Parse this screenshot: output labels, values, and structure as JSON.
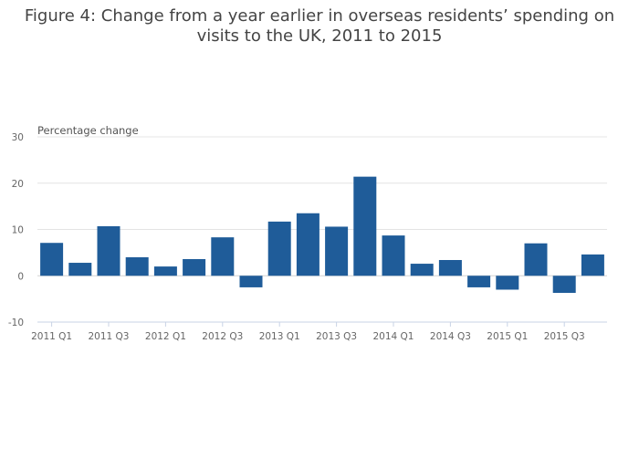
{
  "chart_data": {
    "type": "bar",
    "title_lines": [
      "Figure 4: Change from a year earlier in overseas residents’ spending on",
      "visits to the UK, 2011 to 2015"
    ],
    "ylabel": "Percentage change",
    "xlabel": "",
    "ylim": [
      -10,
      30
    ],
    "yticks": [
      -10,
      0,
      10,
      20,
      30
    ],
    "grid": true,
    "bar_color": "#1f5c99",
    "categories": [
      "2011 Q1",
      "2011 Q2",
      "2011 Q3",
      "2011 Q4",
      "2012 Q1",
      "2012 Q2",
      "2012 Q3",
      "2012 Q4",
      "2013 Q1",
      "2013 Q2",
      "2013 Q3",
      "2013 Q4",
      "2014 Q1",
      "2014 Q2",
      "2014 Q3",
      "2014 Q4",
      "2015 Q1",
      "2015 Q2",
      "2015 Q3",
      "2015 Q4"
    ],
    "tick_labels": [
      "2011 Q1",
      "2011 Q3",
      "2012 Q1",
      "2012 Q3",
      "2013 Q1",
      "2013 Q3",
      "2014 Q1",
      "2014 Q3",
      "2015 Q1",
      "2015 Q3"
    ],
    "values": [
      7.1,
      2.8,
      10.7,
      4.0,
      2.0,
      3.6,
      8.3,
      -2.5,
      11.7,
      13.5,
      10.6,
      21.4,
      8.7,
      2.6,
      3.4,
      -2.5,
      -3.0,
      7.0,
      -3.7,
      4.6
    ]
  }
}
